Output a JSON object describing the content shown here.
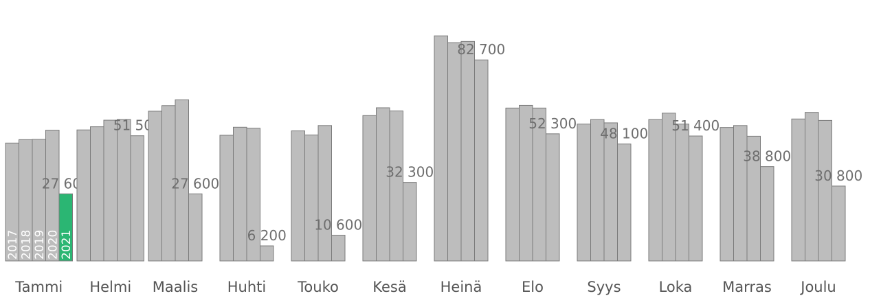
{
  "chart_data": {
    "type": "bar",
    "categories": [
      "Tammi",
      "Helmi",
      "Maalis",
      "Huhti",
      "Touko",
      "Kesä",
      "Heinä",
      "Elo",
      "Syys",
      "Loka",
      "Marras",
      "Joulu"
    ],
    "series": [
      {
        "name": "2017",
        "values": [
          48500,
          53900,
          61600,
          51700,
          53500,
          59800,
          92600,
          62900,
          56300,
          58200,
          54900,
          58400
        ]
      },
      {
        "name": "2018",
        "values": [
          49900,
          55200,
          63900,
          55000,
          51800,
          63000,
          89800,
          64000,
          58200,
          60800,
          55700,
          61100
        ]
      },
      {
        "name": "2019",
        "values": [
          50000,
          57900,
          66300,
          54600,
          55700,
          61700,
          90300,
          62900,
          56800,
          56300,
          51300,
          57800
        ]
      },
      {
        "name": "2020",
        "values": [
          53800,
          58200,
          null,
          null,
          null,
          null,
          null,
          null,
          null,
          null,
          null,
          null
        ]
      },
      {
        "name": "2021",
        "values": [
          27600,
          51500,
          27600,
          6200,
          10600,
          32300,
          82700,
          52300,
          48100,
          51400,
          38800,
          30800
        ]
      }
    ],
    "value_labels": [
      "27 600",
      "51 500",
      "27 600",
      "6 200",
      "10 600",
      "32 300",
      "82 700",
      "52 300",
      "48 100",
      "51 400",
      "38 800",
      "30 800"
    ],
    "highlight_color": "#2bb673",
    "bar_color": "#bdbdbd",
    "bar_stroke": "#7a7a7a",
    "ylim": [
      0,
      100000
    ],
    "grid": false,
    "legend": "year labels inside first group"
  }
}
